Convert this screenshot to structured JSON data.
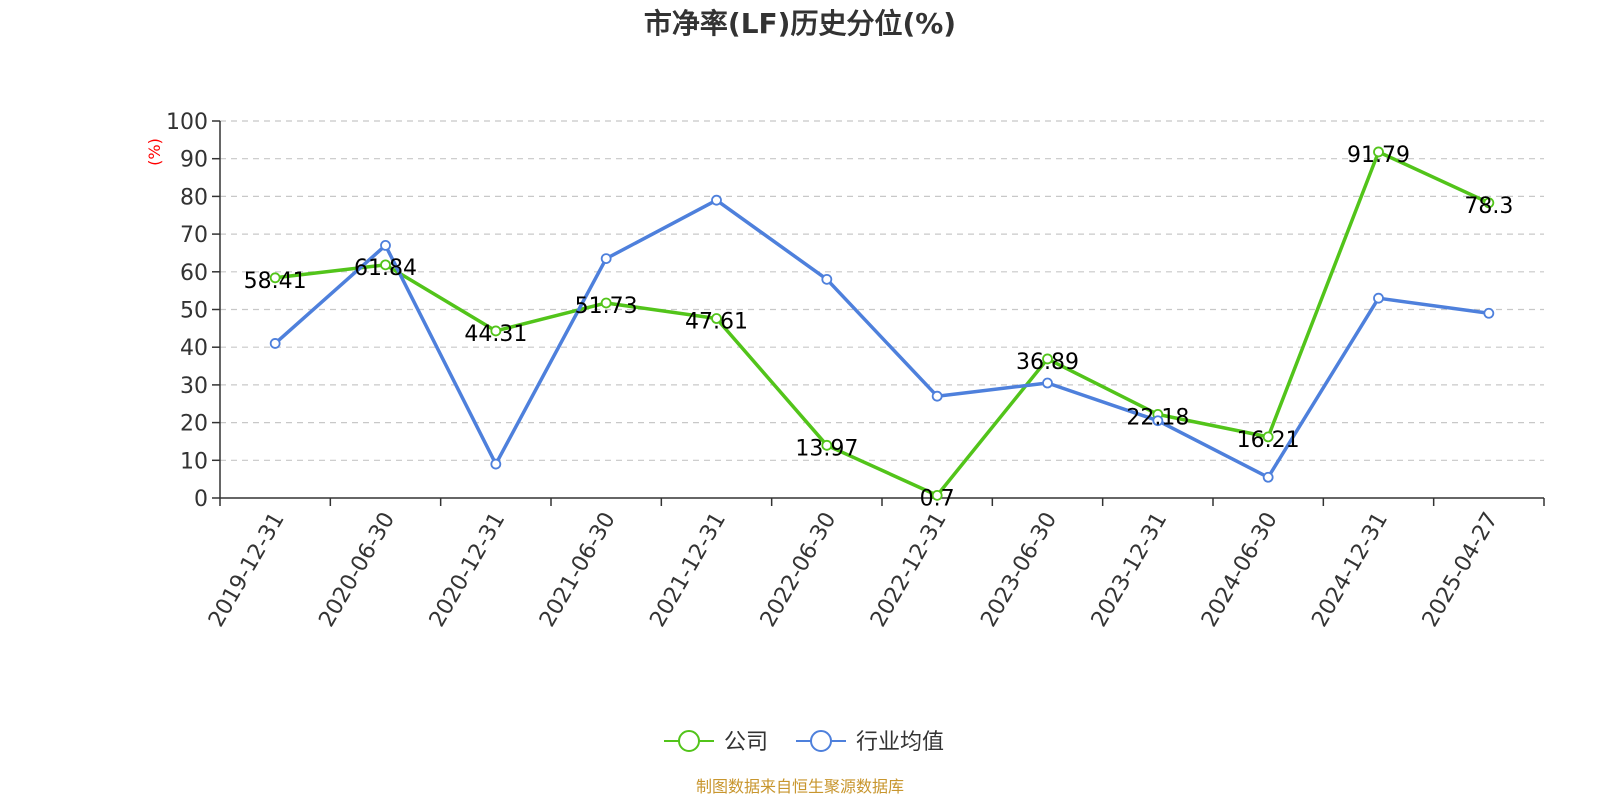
{
  "chart_data": {
    "type": "line",
    "title": "市净率(LF)历史分位(%)",
    "ylabel": "(%)",
    "xlabel": "",
    "ylim": [
      0,
      100
    ],
    "yticks": [
      0,
      10,
      20,
      30,
      40,
      50,
      60,
      70,
      80,
      90,
      100
    ],
    "grid": true,
    "legend_position": "bottom",
    "categories": [
      "2019-12-31",
      "2020-06-30",
      "2020-12-31",
      "2021-06-30",
      "2021-12-31",
      "2022-06-30",
      "2022-12-31",
      "2023-06-30",
      "2023-12-31",
      "2024-06-30",
      "2024-12-31",
      "2025-04-27"
    ],
    "series": [
      {
        "name": "公司",
        "color": "#52c41a",
        "values": [
          58.41,
          61.84,
          44.31,
          51.73,
          47.61,
          13.97,
          0.7,
          36.89,
          22.18,
          16.21,
          91.79,
          78.3
        ],
        "labels": [
          "58.41",
          "61.84",
          "44.31",
          "51.73",
          "47.61",
          "13.97",
          "0.7",
          "36.89",
          "22.18",
          "16.21",
          "91.79",
          "78.3"
        ]
      },
      {
        "name": "行业均值",
        "color": "#4e80dc",
        "values": [
          41,
          67,
          9,
          63.5,
          79,
          58,
          27,
          30.5,
          20.5,
          5.5,
          53,
          49
        ]
      }
    ],
    "source": "制图数据来自恒生聚源数据库"
  }
}
